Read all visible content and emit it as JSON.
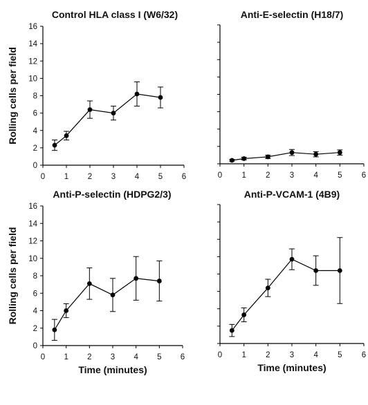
{
  "chart_data": [
    {
      "type": "line",
      "title": "Control HLA class I (W6/32)",
      "ylabel": "Rolling cells per field",
      "xlabel": "",
      "xlim": [
        0,
        6
      ],
      "ylim": [
        0,
        16
      ],
      "xticks": [
        "0",
        "1",
        "2",
        "3",
        "4",
        "5",
        "6"
      ],
      "yticks": [
        "0",
        "2",
        "4",
        "6",
        "8",
        "10",
        "12",
        "14",
        "16"
      ],
      "show_ytick_labels": true,
      "series": [
        {
          "x": [
            0.5,
            1,
            2,
            3,
            4,
            5
          ],
          "y": [
            2.3,
            3.4,
            6.4,
            6.0,
            8.2,
            7.8
          ],
          "err": [
            0.6,
            0.5,
            1.0,
            0.8,
            1.4,
            1.2
          ]
        }
      ]
    },
    {
      "type": "line",
      "title": "Anti-E-selectin (H18/7)",
      "ylabel": "",
      "xlabel": "",
      "xlim": [
        0,
        6
      ],
      "ylim": [
        0,
        16
      ],
      "xticks": [
        "0",
        "1",
        "2",
        "3",
        "4",
        "5",
        "6"
      ],
      "yticks": [
        "0",
        "2",
        "4",
        "6",
        "8",
        "10",
        "12",
        "14",
        "16"
      ],
      "show_ytick_labels": false,
      "series": [
        {
          "x": [
            0.5,
            1,
            2,
            3,
            4,
            5
          ],
          "y": [
            0.4,
            0.6,
            0.8,
            1.3,
            1.1,
            1.3
          ],
          "err": [
            0.1,
            0.15,
            0.2,
            0.35,
            0.3,
            0.3
          ]
        }
      ]
    },
    {
      "type": "line",
      "title": "Anti-P-selectin (HDPG2/3)",
      "ylabel": "Rolling cells per field",
      "xlabel": "Time (minutes)",
      "xlim": [
        0,
        6
      ],
      "ylim": [
        0,
        16
      ],
      "xticks": [
        "0",
        "1",
        "2",
        "3",
        "4",
        "5",
        "6"
      ],
      "yticks": [
        "0",
        "2",
        "4",
        "6",
        "8",
        "10",
        "12",
        "14",
        "16"
      ],
      "show_ytick_labels": true,
      "series": [
        {
          "x": [
            0.5,
            1,
            2,
            3,
            4,
            5
          ],
          "y": [
            1.8,
            4.0,
            7.1,
            5.8,
            7.7,
            7.4
          ],
          "err": [
            1.2,
            0.8,
            1.8,
            1.9,
            2.5,
            2.3
          ]
        }
      ]
    },
    {
      "type": "line",
      "title": "Anti-P-VCAM-1 (4B9)",
      "ylabel": "",
      "xlabel": "Time (minutes)",
      "xlim": [
        0,
        6
      ],
      "ylim": [
        0,
        16
      ],
      "xticks": [
        "0",
        "1",
        "2",
        "3",
        "4",
        "5",
        "6"
      ],
      "yticks": [
        "0",
        "2",
        "4",
        "6",
        "8",
        "10",
        "12",
        "14",
        "16"
      ],
      "show_ytick_labels": false,
      "series": [
        {
          "x": [
            0.5,
            1,
            2,
            3,
            4,
            5
          ],
          "y": [
            1.5,
            3.3,
            6.4,
            9.7,
            8.4,
            8.4
          ],
          "err": [
            0.7,
            0.8,
            1.0,
            1.2,
            1.7,
            3.8
          ]
        }
      ]
    }
  ]
}
